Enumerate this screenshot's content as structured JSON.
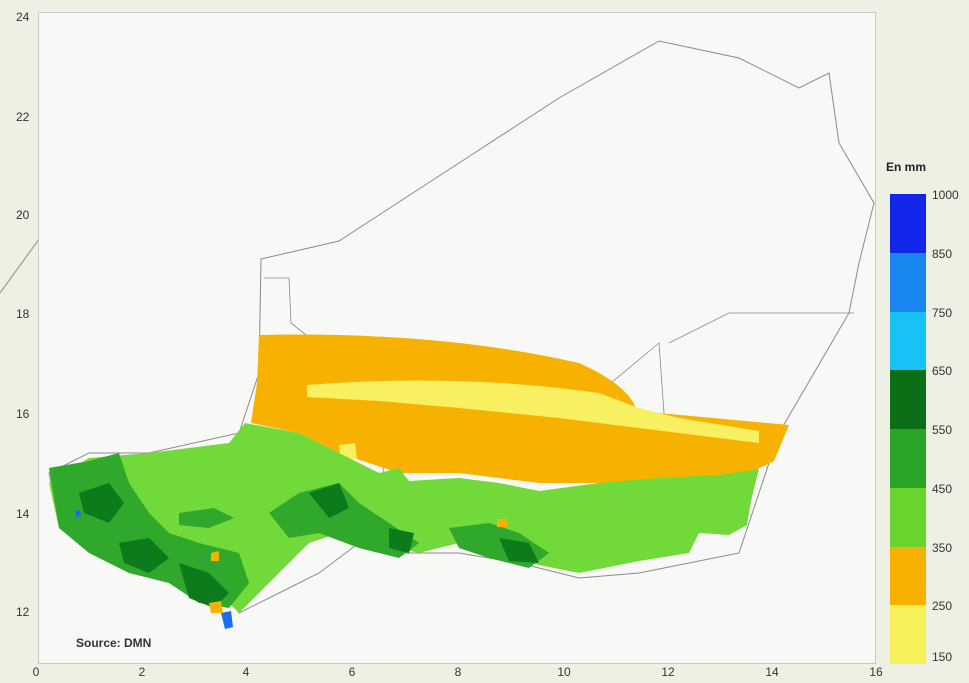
{
  "map": {
    "y_ticks": [
      "24",
      "22",
      "20",
      "18",
      "16",
      "14",
      "12"
    ],
    "x_ticks": [
      "0",
      "2",
      "4",
      "6",
      "8",
      "10",
      "12",
      "14",
      "16"
    ],
    "source": "Source: DMN"
  },
  "legend": {
    "title": "En mm",
    "labels": [
      "1000",
      "850",
      "750",
      "650",
      "550",
      "450",
      "350",
      "250",
      "150"
    ],
    "colors": [
      "#1126e8",
      "#1a86f0",
      "#19c2f4",
      "#0d6e18",
      "#2aa528",
      "#6ad42e",
      "#f7b100",
      "#f6f05a"
    ]
  },
  "colors": {
    "border": "#8a8a8a",
    "dark_green": "#0d7a1c",
    "mid_green": "#2fa82b",
    "light_green": "#72d93a",
    "orange": "#f7b100",
    "yellow": "#f8f060",
    "blue": "#1b6cf0"
  }
}
